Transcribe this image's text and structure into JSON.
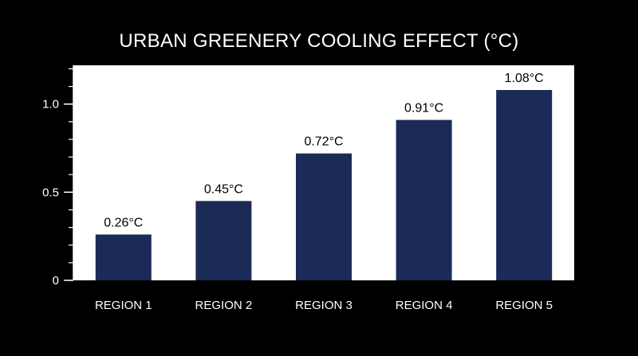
{
  "chart_data": {
    "type": "bar",
    "title": "URBAN GREENERY COOLING EFFECT (°C)",
    "xlabel": "",
    "ylabel": "",
    "categories": [
      "REGION 1",
      "REGION 2",
      "REGION 3",
      "REGION 4",
      "REGION 5"
    ],
    "values": [
      0.26,
      0.45,
      0.72,
      0.91,
      1.08
    ],
    "data_labels": [
      "0.26°C",
      "0.45°C",
      "0.72°C",
      "0.91°C",
      "1.08°C"
    ],
    "ylim": [
      0,
      1.22
    ],
    "yticks": [
      0,
      0.5,
      1.0
    ],
    "ytick_labels": [
      "0",
      "0.5",
      "1.0"
    ],
    "minor_tick_step": 0.1,
    "grid": false,
    "legend": "none",
    "colors": {
      "background": "#000000",
      "plot_area": "#ffffff",
      "bar": "#1b2a57",
      "text": "#ffffff"
    }
  }
}
